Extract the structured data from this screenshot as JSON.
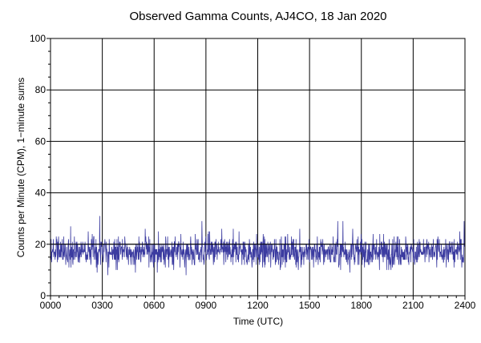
{
  "chart_data": {
    "type": "line",
    "title": "Observed Gamma Counts, AJ4CO, 18 Jan 2020",
    "xlabel": "Time (UTC)",
    "ylabel": "Counts per Minute (CPM), 1−minute sums",
    "xlim": [
      0,
      1440
    ],
    "ylim": [
      0,
      100
    ],
    "x_unit": "minutes",
    "x_ticks": [
      0,
      180,
      360,
      540,
      720,
      900,
      1080,
      1260,
      1440
    ],
    "x_tick_labels": [
      "0000",
      "0300",
      "0600",
      "0900",
      "1200",
      "1500",
      "1800",
      "2100",
      "2400"
    ],
    "y_ticks": [
      0,
      20,
      40,
      60,
      80,
      100
    ],
    "y_tick_labels": [
      "0",
      "20",
      "40",
      "60",
      "80",
      "100"
    ],
    "grid": true,
    "reference_line": {
      "y": 20
    },
    "series": [
      {
        "color": "#3b3ba0",
        "sampling": "1-minute sums, 1440 points",
        "baseline_mean": 17,
        "typical_range": [
          8,
          28
        ],
        "observed_max": 31,
        "observed_min": 6
      }
    ]
  },
  "colors": {
    "background": "#ffffff",
    "grid": "#000000",
    "series": "#3b3ba0"
  }
}
